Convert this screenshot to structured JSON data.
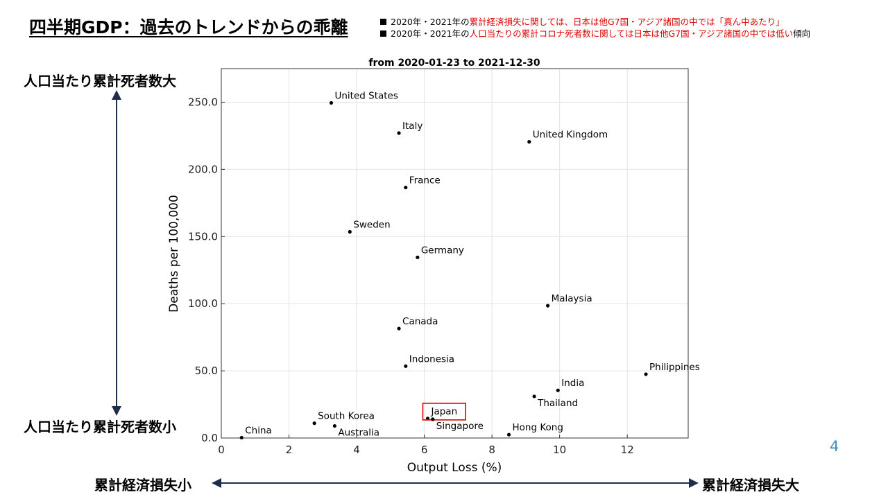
{
  "slide": {
    "title": "四半期GDP：過去のトレンドからの乖離",
    "bullets": [
      {
        "prefix": "2020年・2021年の",
        "highlight": "累計経済損失に関しては、日本は他G7国・アジア諸国の中では「真ん中あたり」",
        "suffix": ""
      },
      {
        "prefix": "2020年・2021年の",
        "highlight": "人口当たりの累計コロナ死者数に関しては日本は他G7国・アジア諸国の中では低い",
        "suffix": "傾向"
      }
    ],
    "y_arrow_top_label": "人口当たり累計死者数大",
    "y_arrow_bottom_label": "人口当たり累計死者数小",
    "x_arrow_left_label": "累計経済損失小",
    "x_arrow_right_label": "累計経済損失大",
    "page_number": "4",
    "colors": {
      "arrow": "#1f2d4d",
      "highlight_box": "#e00000",
      "bullet_red": "#e00000",
      "page_number": "#3a8fc7"
    }
  },
  "chart_data": {
    "type": "scatter",
    "title": "from 2020-01-23 to 2021-12-30",
    "xlabel": "Output Loss (%)",
    "ylabel": "Deaths per 100,000",
    "xlim": [
      0,
      13.8
    ],
    "ylim": [
      0,
      275
    ],
    "xticks": [
      0,
      2,
      4,
      6,
      8,
      10,
      12
    ],
    "xtick_labels": [
      "0",
      "2",
      "4",
      "6",
      "8",
      "10",
      "12"
    ],
    "yticks": [
      0,
      50,
      100,
      150,
      200,
      250
    ],
    "ytick_labels": [
      "0.0",
      "50.0",
      "100.0",
      "150.0",
      "200.0",
      "250.0"
    ],
    "grid": true,
    "highlighted": "Japan",
    "points": [
      {
        "name": "United States",
        "x": 3.25,
        "y": 249.5,
        "label_pos": "above-right"
      },
      {
        "name": "Italy",
        "x": 5.25,
        "y": 227.0,
        "label_pos": "above-right"
      },
      {
        "name": "United Kingdom",
        "x": 9.1,
        "y": 220.5,
        "label_pos": "above-right"
      },
      {
        "name": "France",
        "x": 5.45,
        "y": 186.5,
        "label_pos": "above-right"
      },
      {
        "name": "Sweden",
        "x": 3.8,
        "y": 153.5,
        "label_pos": "above-right"
      },
      {
        "name": "Germany",
        "x": 5.8,
        "y": 134.5,
        "label_pos": "above-right"
      },
      {
        "name": "Malaysia",
        "x": 9.65,
        "y": 98.5,
        "label_pos": "above-right"
      },
      {
        "name": "Canada",
        "x": 5.25,
        "y": 81.5,
        "label_pos": "above-right"
      },
      {
        "name": "Indonesia",
        "x": 5.45,
        "y": 53.5,
        "label_pos": "above-right"
      },
      {
        "name": "Philippines",
        "x": 12.55,
        "y": 47.5,
        "label_pos": "above-right"
      },
      {
        "name": "India",
        "x": 9.95,
        "y": 35.5,
        "label_pos": "above-right"
      },
      {
        "name": "Thailand",
        "x": 9.25,
        "y": 31.0,
        "label_pos": "below-right"
      },
      {
        "name": "Japan",
        "x": 6.1,
        "y": 14.5,
        "label_pos": "above-right"
      },
      {
        "name": "Singapore",
        "x": 6.25,
        "y": 14.0,
        "label_pos": "below-right"
      },
      {
        "name": "South Korea",
        "x": 2.75,
        "y": 11.0,
        "label_pos": "above-right"
      },
      {
        "name": "Australia",
        "x": 3.35,
        "y": 9.0,
        "label_pos": "below-right"
      },
      {
        "name": "Hong Kong",
        "x": 8.5,
        "y": 2.5,
        "label_pos": "above-right"
      },
      {
        "name": "China",
        "x": 0.6,
        "y": 0.3,
        "label_pos": "above-right"
      }
    ]
  }
}
